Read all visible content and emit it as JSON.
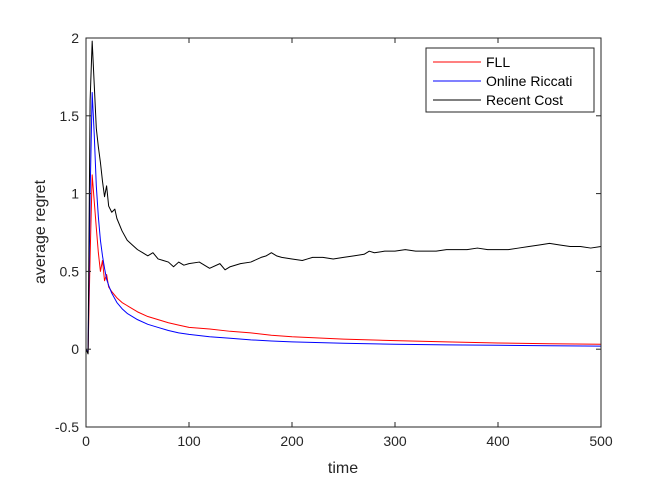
{
  "chart_data": {
    "type": "line",
    "title": "",
    "xlabel": "time",
    "ylabel": "average regret",
    "xlim": [
      0,
      500
    ],
    "ylim": [
      -0.5,
      2
    ],
    "xticks": [
      "0",
      "100",
      "200",
      "300",
      "400",
      "500"
    ],
    "yticks": [
      "-0.5",
      "0",
      "0.5",
      "1",
      "1.5",
      "2"
    ],
    "grid": false,
    "legend_position": "top-right",
    "series": [
      {
        "name": "FLL",
        "color": "#ff0000",
        "points": [
          [
            0,
            0
          ],
          [
            2,
            -0.02
          ],
          [
            4,
            0.6
          ],
          [
            6,
            1.12
          ],
          [
            8,
            0.95
          ],
          [
            10,
            0.78
          ],
          [
            12,
            0.62
          ],
          [
            14,
            0.5
          ],
          [
            16,
            0.57
          ],
          [
            18,
            0.44
          ],
          [
            20,
            0.48
          ],
          [
            22,
            0.4
          ],
          [
            25,
            0.37
          ],
          [
            30,
            0.33
          ],
          [
            35,
            0.3
          ],
          [
            40,
            0.28
          ],
          [
            50,
            0.24
          ],
          [
            60,
            0.21
          ],
          [
            70,
            0.19
          ],
          [
            80,
            0.17
          ],
          [
            90,
            0.155
          ],
          [
            100,
            0.14
          ],
          [
            120,
            0.13
          ],
          [
            140,
            0.115
          ],
          [
            160,
            0.105
          ],
          [
            180,
            0.09
          ],
          [
            200,
            0.08
          ],
          [
            250,
            0.065
          ],
          [
            300,
            0.055
          ],
          [
            350,
            0.047
          ],
          [
            400,
            0.04
          ],
          [
            450,
            0.035
          ],
          [
            500,
            0.032
          ]
        ]
      },
      {
        "name": "Online Riccati",
        "color": "#0000ff",
        "points": [
          [
            0,
            0
          ],
          [
            2,
            -0.02
          ],
          [
            4,
            1.0
          ],
          [
            6,
            1.65
          ],
          [
            8,
            1.38
          ],
          [
            10,
            1.05
          ],
          [
            12,
            0.85
          ],
          [
            14,
            0.7
          ],
          [
            16,
            0.6
          ],
          [
            18,
            0.52
          ],
          [
            20,
            0.45
          ],
          [
            22,
            0.41
          ],
          [
            25,
            0.36
          ],
          [
            30,
            0.3
          ],
          [
            35,
            0.26
          ],
          [
            40,
            0.23
          ],
          [
            50,
            0.19
          ],
          [
            60,
            0.16
          ],
          [
            70,
            0.14
          ],
          [
            80,
            0.12
          ],
          [
            90,
            0.105
          ],
          [
            100,
            0.095
          ],
          [
            120,
            0.08
          ],
          [
            140,
            0.07
          ],
          [
            160,
            0.06
          ],
          [
            180,
            0.053
          ],
          [
            200,
            0.047
          ],
          [
            250,
            0.038
          ],
          [
            300,
            0.032
          ],
          [
            350,
            0.028
          ],
          [
            400,
            0.025
          ],
          [
            450,
            0.022
          ],
          [
            500,
            0.02
          ]
        ]
      },
      {
        "name": "Recent Cost",
        "color": "#000000",
        "points": [
          [
            0,
            0
          ],
          [
            2,
            -0.03
          ],
          [
            4,
            1.6
          ],
          [
            6,
            1.98
          ],
          [
            8,
            1.7
          ],
          [
            10,
            1.42
          ],
          [
            12,
            1.3
          ],
          [
            14,
            1.2
          ],
          [
            16,
            1.08
          ],
          [
            18,
            0.98
          ],
          [
            20,
            1.05
          ],
          [
            22,
            0.92
          ],
          [
            25,
            0.88
          ],
          [
            28,
            0.9
          ],
          [
            30,
            0.84
          ],
          [
            35,
            0.76
          ],
          [
            40,
            0.7
          ],
          [
            45,
            0.67
          ],
          [
            50,
            0.64
          ],
          [
            55,
            0.62
          ],
          [
            60,
            0.6
          ],
          [
            65,
            0.62
          ],
          [
            70,
            0.58
          ],
          [
            75,
            0.57
          ],
          [
            80,
            0.56
          ],
          [
            85,
            0.53
          ],
          [
            90,
            0.56
          ],
          [
            95,
            0.54
          ],
          [
            100,
            0.55
          ],
          [
            110,
            0.56
          ],
          [
            120,
            0.52
          ],
          [
            130,
            0.55
          ],
          [
            135,
            0.51
          ],
          [
            140,
            0.53
          ],
          [
            150,
            0.55
          ],
          [
            160,
            0.56
          ],
          [
            170,
            0.59
          ],
          [
            175,
            0.6
          ],
          [
            180,
            0.62
          ],
          [
            185,
            0.6
          ],
          [
            190,
            0.59
          ],
          [
            200,
            0.58
          ],
          [
            210,
            0.57
          ],
          [
            215,
            0.58
          ],
          [
            220,
            0.59
          ],
          [
            230,
            0.59
          ],
          [
            240,
            0.58
          ],
          [
            250,
            0.59
          ],
          [
            260,
            0.6
          ],
          [
            270,
            0.61
          ],
          [
            275,
            0.63
          ],
          [
            280,
            0.62
          ],
          [
            290,
            0.63
          ],
          [
            300,
            0.63
          ],
          [
            310,
            0.64
          ],
          [
            320,
            0.63
          ],
          [
            330,
            0.63
          ],
          [
            340,
            0.63
          ],
          [
            350,
            0.64
          ],
          [
            360,
            0.64
          ],
          [
            370,
            0.64
          ],
          [
            380,
            0.65
          ],
          [
            390,
            0.64
          ],
          [
            400,
            0.64
          ],
          [
            410,
            0.64
          ],
          [
            420,
            0.65
          ],
          [
            430,
            0.66
          ],
          [
            440,
            0.67
          ],
          [
            450,
            0.68
          ],
          [
            460,
            0.67
          ],
          [
            470,
            0.66
          ],
          [
            480,
            0.66
          ],
          [
            490,
            0.65
          ],
          [
            500,
            0.66
          ]
        ]
      }
    ]
  }
}
